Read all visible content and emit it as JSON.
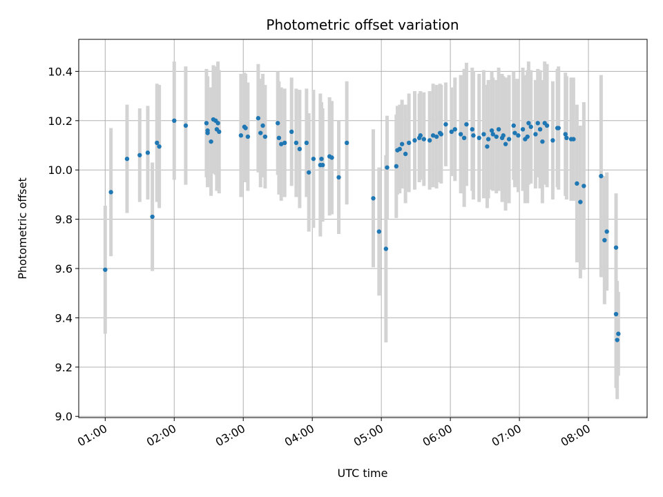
{
  "chart_data": {
    "type": "scatter",
    "title": "Photometric offset variation",
    "xlabel": "UTC time",
    "ylabel": "Photometric offset",
    "xlim": [
      "00:37",
      "08:51"
    ],
    "ylim": [
      8.995,
      10.53
    ],
    "grid": true,
    "x_ticks": [
      "01:00",
      "02:00",
      "03:00",
      "04:00",
      "05:00",
      "06:00",
      "07:00",
      "08:00"
    ],
    "y_ticks": [
      9.0,
      9.2,
      9.4,
      9.6,
      9.8,
      10.0,
      10.2,
      10.4
    ],
    "colors": {
      "point": "#1f77b4",
      "error_bar": "#d3d3d3",
      "grid": "#b0b0b0"
    },
    "series": [
      {
        "x": [
          "01:00",
          "01:05",
          "01:19",
          "01:30",
          "01:37",
          "01:41",
          "01:45",
          "01:47",
          "02:00",
          "02:10",
          "02:28",
          "02:29",
          "02:29",
          "02:32",
          "02:34",
          "02:36",
          "02:37",
          "02:38",
          "02:39",
          "02:58",
          "03:01",
          "03:02",
          "03:04",
          "03:13",
          "03:15",
          "03:17",
          "03:19",
          "03:30",
          "03:31",
          "03:33",
          "03:36",
          "03:42",
          "03:46",
          "03:49",
          "03:55",
          "03:57",
          "04:01",
          "04:07",
          "04:08",
          "04:09",
          "04:15",
          "04:17",
          "04:23",
          "04:30",
          "04:53",
          "04:58",
          "05:04",
          "05:05",
          "05:13",
          "05:14",
          "05:16",
          "05:18",
          "05:21",
          "05:24",
          "05:29",
          "05:33",
          "05:34",
          "05:37",
          "05:42",
          "05:45",
          "05:48",
          "05:51",
          "05:52",
          "05:56",
          "06:01",
          "06:04",
          "06:09",
          "06:12",
          "06:14",
          "06:19",
          "06:20",
          "06:25",
          "06:29",
          "06:32",
          "06:33",
          "06:36",
          "06:37",
          "06:40",
          "06:42",
          "06:45",
          "06:46",
          "06:48",
          "06:51",
          "06:55",
          "06:56",
          "06:59",
          "07:03",
          "07:05",
          "07:07",
          "07:08",
          "07:10",
          "07:14",
          "07:16",
          "07:18",
          "07:20",
          "07:22",
          "07:24",
          "07:29",
          "07:33",
          "07:34",
          "07:40",
          "07:41",
          "07:45",
          "07:47",
          "07:50",
          "07:53",
          "07:56",
          "08:11",
          "08:14",
          "08:16",
          "08:24",
          "08:24",
          "08:25",
          "08:26"
        ],
        "y": [
          9.595,
          9.91,
          10.045,
          10.06,
          10.07,
          9.81,
          10.11,
          10.095,
          10.2,
          10.18,
          10.19,
          10.15,
          10.16,
          10.115,
          10.205,
          10.2,
          10.165,
          10.19,
          10.155,
          10.14,
          10.175,
          10.17,
          10.135,
          10.21,
          10.15,
          10.18,
          10.135,
          10.19,
          10.13,
          10.105,
          10.11,
          10.155,
          10.11,
          10.085,
          10.11,
          9.99,
          10.045,
          10.02,
          10.045,
          10.02,
          10.055,
          10.05,
          9.97,
          10.11,
          9.885,
          9.75,
          9.68,
          10.01,
          10.015,
          10.08,
          10.085,
          10.105,
          10.065,
          10.11,
          10.12,
          10.13,
          10.14,
          10.125,
          10.12,
          10.14,
          10.135,
          10.15,
          10.145,
          10.185,
          10.155,
          10.165,
          10.145,
          10.13,
          10.185,
          10.165,
          10.14,
          10.13,
          10.145,
          10.095,
          10.125,
          10.16,
          10.145,
          10.135,
          10.165,
          10.13,
          10.14,
          10.105,
          10.125,
          10.18,
          10.15,
          10.14,
          10.165,
          10.125,
          10.135,
          10.19,
          10.175,
          10.145,
          10.19,
          10.165,
          10.115,
          10.19,
          10.18,
          10.12,
          10.17,
          10.17,
          10.145,
          10.13,
          10.125,
          10.125,
          9.945,
          9.87,
          9.935,
          9.975,
          9.715,
          9.75,
          9.685,
          9.415,
          9.31,
          9.335
        ],
        "error": [
          0.26,
          0.26,
          0.22,
          0.19,
          0.19,
          0.22,
          0.24,
          0.25,
          0.24,
          0.24,
          0.22,
          0.22,
          0.22,
          0.22,
          0.22,
          0.22,
          0.25,
          0.25,
          0.25,
          0.25,
          0.22,
          0.22,
          0.22,
          0.22,
          0.22,
          0.21,
          0.21,
          0.21,
          0.23,
          0.23,
          0.22,
          0.22,
          0.22,
          0.24,
          0.22,
          0.24,
          0.28,
          0.29,
          0.23,
          0.23,
          0.24,
          0.23,
          0.23,
          0.25,
          0.28,
          0.26,
          0.38,
          0.21,
          0.21,
          0.18,
          0.18,
          0.18,
          0.2,
          0.2,
          0.2,
          0.18,
          0.18,
          0.19,
          0.2,
          0.21,
          0.21,
          0.2,
          0.2,
          0.17,
          0.18,
          0.21,
          0.24,
          0.28,
          0.25,
          0.25,
          0.26,
          0.26,
          0.26,
          0.25,
          0.24,
          0.24,
          0.23,
          0.23,
          0.25,
          0.26,
          0.24,
          0.27,
          0.26,
          0.22,
          0.22,
          0.23,
          0.25,
          0.26,
          0.27,
          0.25,
          0.23,
          0.22,
          0.22,
          0.24,
          0.25,
          0.25,
          0.25,
          0.24,
          0.24,
          0.25,
          0.25,
          0.25,
          0.25,
          0.25,
          0.32,
          0.31,
          0.34,
          0.41,
          0.26,
          0.24,
          0.22,
          0.3,
          0.24,
          0.17
        ]
      }
    ]
  }
}
